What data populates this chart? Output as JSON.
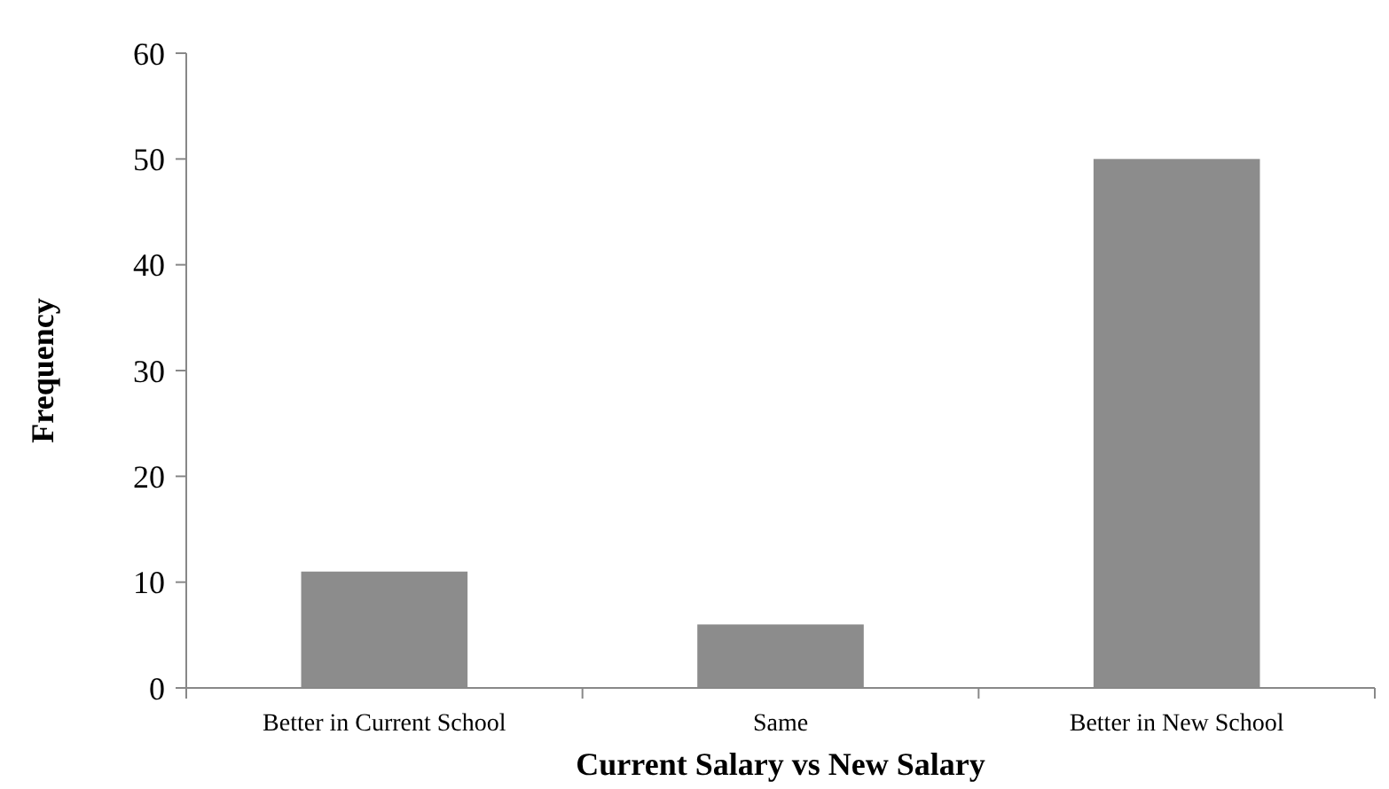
{
  "chart_data": {
    "type": "bar",
    "xlabel": "Current Salary vs New Salary",
    "ylabel": "Frequency",
    "categories": [
      "Better in Current School",
      "Same",
      "Better in New School"
    ],
    "values": [
      11,
      6,
      50
    ],
    "color": "#8c8c8c",
    "ylim": [
      0,
      60
    ],
    "yticks": [
      0,
      10,
      20,
      30,
      40,
      50,
      60
    ],
    "grid": false
  }
}
